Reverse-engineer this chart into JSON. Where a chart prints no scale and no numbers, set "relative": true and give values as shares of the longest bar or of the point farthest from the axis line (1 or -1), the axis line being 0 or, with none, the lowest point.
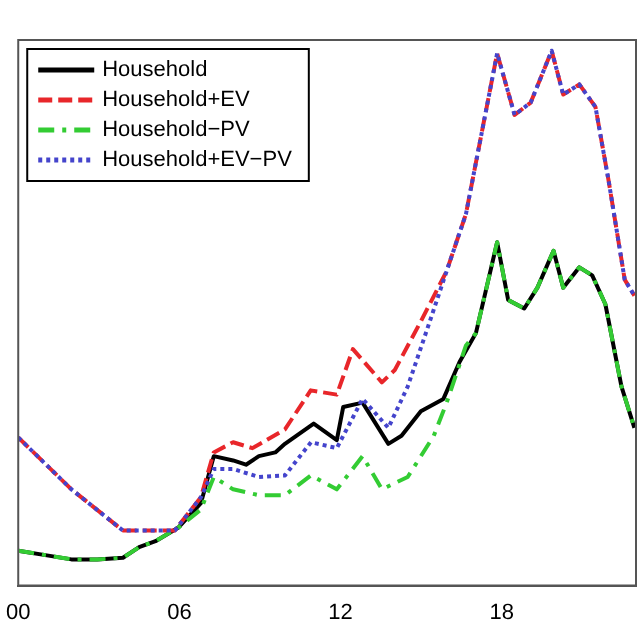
{
  "chart_data": {
    "type": "line",
    "relative": true,
    "xlim": [
      0,
      23
    ],
    "xticks": [
      {
        "value": 0,
        "label": "00"
      },
      {
        "value": 6,
        "label": "06"
      },
      {
        "value": 12,
        "label": "12"
      },
      {
        "value": 18,
        "label": "18"
      }
    ],
    "tick_labels": "x",
    "grid": false,
    "legend": "top left",
    "marker": "none",
    "series": [
      {
        "name": "Household",
        "color": "#000000",
        "line_style": "solid",
        "x": [
          0,
          1.01,
          1.98,
          2.94,
          3.9,
          4.5,
          5.11,
          5.95,
          6.8,
          7.28,
          8.0,
          8.48,
          8.96,
          9.57,
          9.93,
          11.0,
          11.86,
          12.1,
          12.82,
          13.78,
          14.27,
          14.99,
          15.83,
          16.43,
          17.04,
          17.83,
          18.24,
          18.84,
          19.33,
          19.93,
          20.29,
          20.89,
          21.37,
          21.86,
          22.46,
          22.94
        ],
        "values": [
          0.065,
          0.057,
          0.049,
          0.049,
          0.052,
          0.072,
          0.083,
          0.108,
          0.154,
          0.242,
          0.234,
          0.226,
          0.242,
          0.249,
          0.265,
          0.303,
          0.272,
          0.334,
          0.342,
          0.265,
          0.28,
          0.326,
          0.349,
          0.418,
          0.472,
          0.642,
          0.534,
          0.518,
          0.557,
          0.626,
          0.557,
          0.595,
          0.58,
          0.526,
          0.372,
          0.295
        ]
      },
      {
        "name": "Household+EV",
        "color": "#e8262a",
        "line_style": "dashed",
        "x": [
          0,
          1.98,
          3.9,
          5.83,
          6.8,
          7.28,
          8.0,
          8.72,
          9.93,
          10.89,
          11.86,
          12.46,
          13.54,
          14.02,
          15.0,
          15.95,
          16.67,
          17.83,
          18.48,
          19.08,
          19.86,
          20.29,
          20.89,
          21.49,
          21.98,
          22.58,
          22.94
        ],
        "values": [
          0.277,
          0.18,
          0.103,
          0.103,
          0.165,
          0.249,
          0.268,
          0.257,
          0.292,
          0.365,
          0.357,
          0.442,
          0.38,
          0.403,
          0.495,
          0.588,
          0.695,
          0.995,
          0.88,
          0.903,
          1.0,
          0.918,
          0.937,
          0.895,
          0.757,
          0.572,
          0.542
        ]
      },
      {
        "name": "Household−PV",
        "color": "#33cc33",
        "line_style": "dashdot",
        "x": [
          0,
          1.01,
          1.98,
          2.94,
          3.9,
          4.5,
          5.11,
          5.95,
          6.8,
          7.28,
          8.0,
          8.96,
          9.93,
          10.9,
          11.86,
          12.82,
          13.54,
          14.5,
          15.47,
          15.95,
          16.67,
          17.04,
          17.83,
          18.24,
          18.84,
          19.33,
          19.93,
          20.29,
          20.89,
          21.37,
          21.86,
          22.46,
          22.94
        ],
        "values": [
          0.065,
          0.057,
          0.049,
          0.049,
          0.052,
          0.072,
          0.083,
          0.108,
          0.142,
          0.203,
          0.18,
          0.169,
          0.169,
          0.206,
          0.18,
          0.242,
          0.18,
          0.203,
          0.28,
          0.342,
          0.449,
          0.472,
          0.642,
          0.534,
          0.518,
          0.557,
          0.626,
          0.557,
          0.595,
          0.58,
          0.526,
          0.372,
          0.295
        ]
      },
      {
        "name": "Household+EV−PV",
        "color": "#4444cc",
        "line_style": "dotted",
        "x": [
          0,
          1.98,
          3.9,
          5.83,
          6.8,
          7.28,
          8.0,
          8.96,
          9.93,
          10.9,
          11.86,
          12.82,
          13.78,
          14.5,
          15.23,
          15.95,
          16.67,
          17.83,
          18.48,
          19.08,
          19.86,
          20.29,
          20.89,
          21.49,
          21.98,
          22.58,
          22.94
        ],
        "values": [
          0.277,
          0.18,
          0.103,
          0.103,
          0.165,
          0.218,
          0.218,
          0.203,
          0.206,
          0.268,
          0.257,
          0.349,
          0.295,
          0.372,
          0.48,
          0.588,
          0.695,
          0.995,
          0.88,
          0.903,
          1.0,
          0.918,
          0.937,
          0.895,
          0.757,
          0.572,
          0.542
        ]
      }
    ]
  }
}
